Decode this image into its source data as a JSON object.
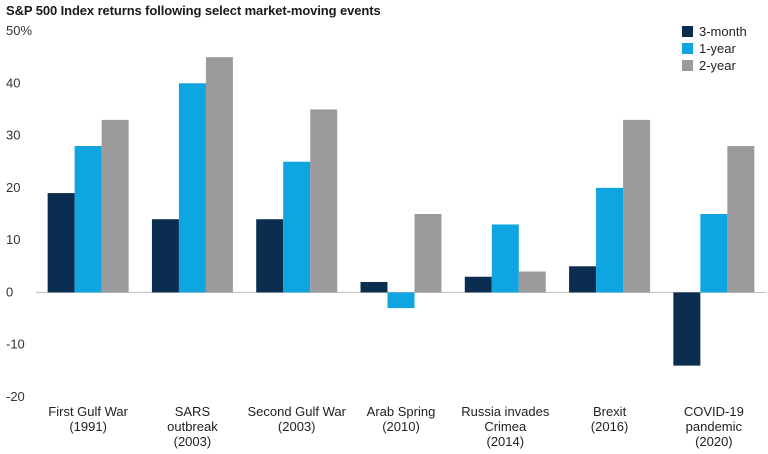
{
  "chart_data": {
    "type": "bar",
    "title": "S&P 500 Index returns following select market-moving events",
    "xlabel": "",
    "ylabel": "",
    "ylim": [
      -20,
      50
    ],
    "yticks": [
      -20,
      -10,
      0,
      10,
      20,
      30,
      40,
      50
    ],
    "ytick_labels": [
      "-20",
      "-10",
      "0",
      "10",
      "20",
      "30",
      "40",
      "50%"
    ],
    "categories": [
      [
        "First Gulf War",
        "(1991)"
      ],
      [
        "SARS",
        "outbreak",
        "(2003)"
      ],
      [
        "Second Gulf War",
        "(2003)"
      ],
      [
        "Arab Spring",
        "(2010)"
      ],
      [
        "Russia invades",
        "Crimea",
        "(2014)"
      ],
      [
        "Brexit",
        "(2016)"
      ],
      [
        "COVID-19",
        "pandemic",
        "(2020)"
      ]
    ],
    "series": [
      {
        "name": "3-month",
        "color": "#0b2d4f",
        "values": [
          19,
          14,
          14,
          2,
          3,
          5,
          -14
        ]
      },
      {
        "name": "1-year",
        "color": "#0ea5e0",
        "values": [
          28,
          40,
          25,
          -3,
          13,
          20,
          15
        ]
      },
      {
        "name": "2-year",
        "color": "#9b9b9b",
        "values": [
          33,
          45,
          35,
          15,
          4,
          33,
          28
        ]
      }
    ],
    "legend_position": "top-right",
    "grid": false
  }
}
